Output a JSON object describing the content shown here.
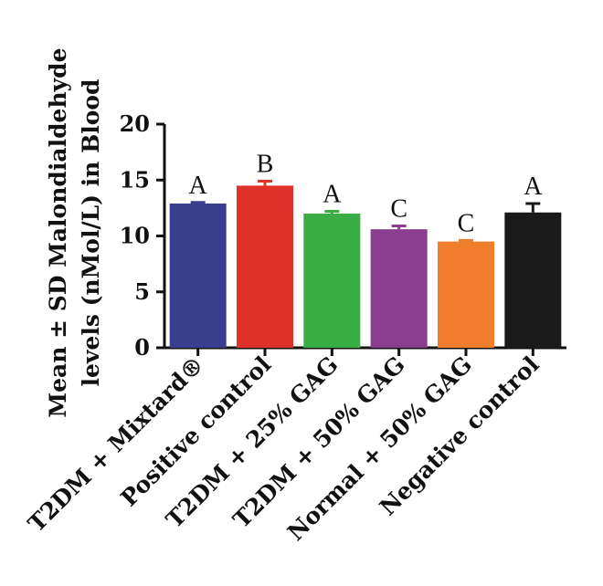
{
  "chart_data": {
    "type": "bar",
    "ylabel_lines": [
      "Mean ± SD Malondialdehyde",
      "levels (nMol/L) in Blood"
    ],
    "xlabel": "",
    "ylim": [
      0,
      20
    ],
    "yticks": [
      0,
      5,
      10,
      15,
      20
    ],
    "grid": false,
    "categories": [
      "T2DM + Mixtard®",
      "Positive control",
      "T2DM + 25% GAG",
      "T2DM + 50% GAG",
      "Normal + 50% GAG",
      "Negative control"
    ],
    "values": [
      12.9,
      14.5,
      12.0,
      10.6,
      9.5,
      12.1
    ],
    "errors": [
      0.1,
      0.4,
      0.2,
      0.3,
      0.1,
      0.8
    ],
    "significance_letters": [
      "A",
      "B",
      "A",
      "C",
      "C",
      "A"
    ],
    "colors": [
      "#3b3e8f",
      "#e03228",
      "#3aad45",
      "#8b3d8f",
      "#f07d2c",
      "#1a1a1a"
    ]
  }
}
